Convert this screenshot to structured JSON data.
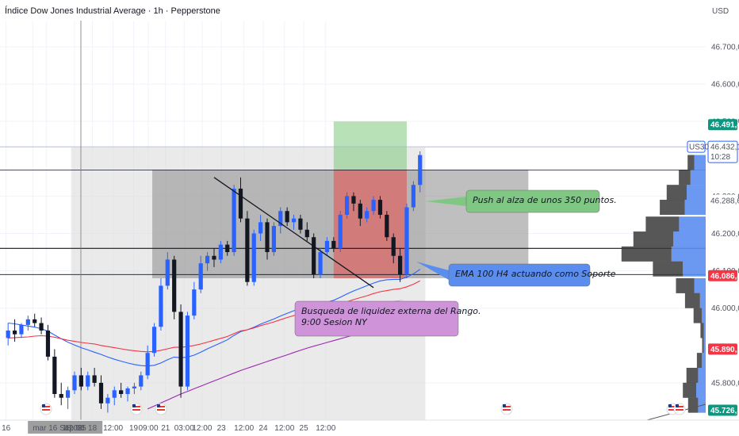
{
  "chart_data": {
    "type": "candlestick",
    "title": "Índice Dow Jones Industrial Average · 1h · Pepperstone",
    "currency": "USD",
    "symbol": "US30",
    "countdown": "10:28",
    "y_ticks": [
      "46.700,0",
      "46.600,0",
      "46.500,0",
      "46.300,0",
      "46.200,0",
      "46.100,0",
      "46.000,0",
      "45.800,0"
    ],
    "y_tick_values": [
      46700,
      46600,
      46500,
      46300,
      46200,
      46100,
      46000,
      45800
    ],
    "ylim": [
      45700,
      46770
    ],
    "x_ticks": [
      "16",
      "mar 16 Sep '25",
      "18:00",
      "12:00",
      "18",
      "12:00",
      "19",
      "09:00",
      "21",
      "03:00",
      "12:00",
      "23",
      "12:00",
      "24",
      "12:00",
      "25",
      "12:00"
    ],
    "x_tick_positions": [
      0.2,
      4.2,
      6.3,
      10.5,
      13.2,
      16.3,
      19.4,
      21.6,
      24.2,
      27.0,
      29.7,
      32.6,
      36.0,
      38.9,
      42.1,
      45.0,
      48.3
    ],
    "price_labels": [
      {
        "value": 46491.4,
        "text": "46.491,4",
        "color": "#089981",
        "style": "filled"
      },
      {
        "value": 46432.1,
        "text": "46.432,1",
        "color": "#2962ff",
        "style": "outline"
      },
      {
        "value": 46288.6,
        "text": "46.288,6",
        "color": "#131722",
        "style": "plain"
      },
      {
        "value": 46086.8,
        "text": "46.086,8",
        "color": "#f23645",
        "style": "filled"
      },
      {
        "value": 45890.2,
        "text": "45.890,2",
        "color": "#f23645",
        "style": "filled"
      },
      {
        "value": 45726.5,
        "text": "45.726,5",
        "color": "#089981",
        "style": "filled"
      }
    ],
    "horizontal_lines": [
      46432,
      46370,
      46160,
      46090
    ],
    "candles": [
      [
        45920,
        45960,
        45900,
        45940
      ],
      [
        45940,
        45970,
        45910,
        45930
      ],
      [
        45930,
        45960,
        45920,
        45955
      ],
      [
        45955,
        45980,
        45940,
        45970
      ],
      [
        45970,
        45985,
        45950,
        45960
      ],
      [
        45960,
        45975,
        45930,
        45940
      ],
      [
        45940,
        45955,
        45860,
        45870
      ],
      [
        45870,
        45890,
        45760,
        45770
      ],
      [
        45770,
        45800,
        45740,
        45760
      ],
      [
        45760,
        45790,
        45730,
        45780
      ],
      [
        45780,
        45830,
        45770,
        45820
      ],
      [
        45820,
        45840,
        45780,
        45790
      ],
      [
        45790,
        45830,
        45780,
        45820
      ],
      [
        45820,
        45840,
        45790,
        45800
      ],
      [
        45800,
        45820,
        45730,
        45745
      ],
      [
        45745,
        45770,
        45720,
        45760
      ],
      [
        45760,
        45790,
        45740,
        45780
      ],
      [
        45780,
        45800,
        45760,
        45770
      ],
      [
        45770,
        45790,
        45750,
        45785
      ],
      [
        45785,
        45800,
        45770,
        45790
      ],
      [
        45790,
        45830,
        45780,
        45820
      ],
      [
        45820,
        45900,
        45810,
        45880
      ],
      [
        45880,
        45960,
        45870,
        45950
      ],
      [
        45950,
        46080,
        45940,
        46060
      ],
      [
        46060,
        46150,
        46050,
        46130
      ],
      [
        46130,
        46140,
        45970,
        45990
      ],
      [
        45990,
        46010,
        45760,
        45790
      ],
      [
        45790,
        45990,
        45780,
        45980
      ],
      [
        45980,
        46070,
        45970,
        46050
      ],
      [
        46050,
        46140,
        46040,
        46120
      ],
      [
        46120,
        46150,
        46100,
        46140
      ],
      [
        46140,
        46160,
        46110,
        46130
      ],
      [
        46130,
        46180,
        46120,
        46170
      ],
      [
        46170,
        46180,
        46140,
        46150
      ],
      [
        46150,
        46330,
        46140,
        46320
      ],
      [
        46320,
        46350,
        46230,
        46240
      ],
      [
        46240,
        46260,
        46060,
        46070
      ],
      [
        46070,
        46210,
        46060,
        46200
      ],
      [
        46200,
        46250,
        46180,
        46230
      ],
      [
        46230,
        46240,
        46130,
        46150
      ],
      [
        46150,
        46230,
        46140,
        46220
      ],
      [
        46220,
        46270,
        46200,
        46260
      ],
      [
        46260,
        46270,
        46220,
        46230
      ],
      [
        46230,
        46250,
        46210,
        46240
      ],
      [
        46240,
        46250,
        46200,
        46210
      ],
      [
        46210,
        46230,
        46180,
        46190
      ],
      [
        46190,
        46200,
        46080,
        46090
      ],
      [
        46090,
        46160,
        46080,
        46150
      ],
      [
        46150,
        46190,
        46140,
        46180
      ],
      [
        46180,
        46190,
        46150,
        46160
      ],
      [
        46160,
        46260,
        46150,
        46250
      ],
      [
        46250,
        46310,
        46240,
        46300
      ],
      [
        46300,
        46310,
        46260,
        46280
      ],
      [
        46280,
        46290,
        46220,
        46240
      ],
      [
        46240,
        46270,
        46230,
        46260
      ],
      [
        46260,
        46300,
        46250,
        46290
      ],
      [
        46290,
        46300,
        46240,
        46250
      ],
      [
        46250,
        46260,
        46180,
        46190
      ],
      [
        46190,
        46200,
        46120,
        46140
      ],
      [
        46140,
        46160,
        46070,
        46090
      ],
      [
        46090,
        46280,
        46080,
        46270
      ],
      [
        46270,
        46340,
        46260,
        46330
      ],
      [
        46330,
        46420,
        46310,
        46410
      ]
    ],
    "ema_series": [
      {
        "color": "#2962ff",
        "values": [
          45960,
          45958,
          45955,
          45952,
          45949,
          45945,
          45938,
          45928,
          45918,
          45909,
          45901,
          45894,
          45888,
          45882,
          45876,
          45869,
          45863,
          45858,
          45853,
          45849,
          45846,
          45845,
          45847,
          45853,
          45862,
          45869,
          45867,
          45869,
          45874,
          45882,
          45891,
          45899,
          45907,
          45915,
          45927,
          45937,
          45942,
          45949,
          45957,
          45964,
          45971,
          45979,
          45986,
          45993,
          45999,
          46004,
          46007,
          46011,
          46016,
          46021,
          46029,
          46038,
          46046,
          46053,
          46060,
          46067,
          46073,
          46076,
          46077,
          46077,
          46083,
          46092,
          46104
        ]
      },
      {
        "color": "#f23645",
        "values": [
          45920,
          45921,
          45922,
          45923,
          45925,
          45926,
          45925,
          45922,
          45918,
          45914,
          45911,
          45908,
          45906,
          45904,
          45900,
          45897,
          45894,
          45891,
          45888,
          45886,
          45884,
          45883,
          45884,
          45887,
          45891,
          45895,
          45895,
          45897,
          45900,
          45904,
          45909,
          45914,
          45919,
          45924,
          45932,
          45939,
          45942,
          45947,
          45953,
          45958,
          45963,
          45969,
          45975,
          45980,
          45985,
          45989,
          45992,
          45996,
          46000,
          46004,
          46010,
          46017,
          46023,
          46028,
          46033,
          46039,
          46044,
          46047,
          46050,
          46052,
          46057,
          46064,
          46073
        ]
      },
      {
        "color": "#9c27b0",
        "values": [
          null,
          null,
          null,
          null,
          null,
          null,
          null,
          null,
          null,
          null,
          null,
          null,
          null,
          null,
          null,
          null,
          null,
          null,
          null,
          null,
          null,
          45730,
          45738,
          45746,
          45754,
          45762,
          45770,
          45777,
          45784,
          45791,
          45798,
          45805,
          45812,
          45819,
          45826,
          45833,
          45839,
          45845,
          45851,
          45857,
          45863,
          45869,
          45875,
          45881,
          45887,
          45893,
          45898,
          45903,
          45908,
          45913,
          45918,
          45923,
          45928,
          45933,
          45938,
          45943,
          45948,
          45952,
          45956,
          45960,
          45965,
          45970,
          45976
        ]
      }
    ],
    "annotations": {
      "push": "Push al alza de unos 350 puntos.",
      "ema": "EMA 100 H4 actuando como Soporte",
      "liquidity_line1": "Busqueda de liquidez externa del Rango.",
      "liquidity_line2": "9:00 Sesion NY"
    },
    "volume_profile": [
      {
        "price": 46390,
        "light": 0.3,
        "dark": 0.2
      },
      {
        "price": 46350,
        "light": 0.4,
        "dark": 0.35
      },
      {
        "price": 46310,
        "light": 0.5,
        "dark": 0.6
      },
      {
        "price": 46270,
        "light": 0.55,
        "dark": 0.75
      },
      {
        "price": 46225,
        "light": 0.7,
        "dark": 1.0
      },
      {
        "price": 46185,
        "light": 0.85,
        "dark": 1.2
      },
      {
        "price": 46145,
        "light": 0.9,
        "dark": 1.5
      },
      {
        "price": 46105,
        "light": 0.6,
        "dark": 0.9
      },
      {
        "price": 46060,
        "light": 0.3,
        "dark": 0.55
      },
      {
        "price": 46020,
        "light": 0.15,
        "dark": 0.45
      },
      {
        "price": 45980,
        "light": 0.1,
        "dark": 0.25
      },
      {
        "price": 45940,
        "light": 0.05,
        "dark": 0.1
      },
      {
        "price": 45900,
        "light": 0.05,
        "dark": 0.05
      },
      {
        "price": 45860,
        "light": 0.1,
        "dark": 0.15
      },
      {
        "price": 45820,
        "light": 0.2,
        "dark": 0.35
      },
      {
        "price": 45780,
        "light": 0.25,
        "dark": 0.4
      },
      {
        "price": 45740,
        "light": 0.2,
        "dark": 0.3
      }
    ]
  },
  "colors": {
    "bull": "#2962ff",
    "bear": "#131722",
    "range_light": "#d9d9d9",
    "range_dark": "#8a8a8a",
    "green_zone": "#7ec87e",
    "red_zone": "#e05c5c",
    "push_box": "#81c784",
    "ema_box": "#5b8def",
    "liquidity_box": "#ce93d8"
  }
}
